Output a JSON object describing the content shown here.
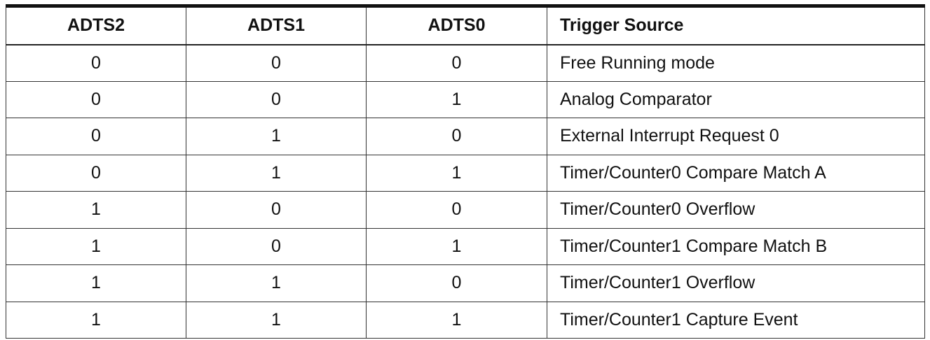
{
  "table": {
    "headers": [
      "ADTS2",
      "ADTS1",
      "ADTS0",
      "Trigger Source"
    ],
    "rows": [
      [
        "0",
        "0",
        "0",
        "Free Running mode"
      ],
      [
        "0",
        "0",
        "1",
        "Analog Comparator"
      ],
      [
        "0",
        "1",
        "0",
        "External Interrupt Request 0"
      ],
      [
        "0",
        "1",
        "1",
        "Timer/Counter0 Compare Match A"
      ],
      [
        "1",
        "0",
        "0",
        "Timer/Counter0 Overflow"
      ],
      [
        "1",
        "0",
        "1",
        "Timer/Counter1 Compare Match B"
      ],
      [
        "1",
        "1",
        "0",
        "Timer/Counter1 Overflow"
      ],
      [
        "1",
        "1",
        "1",
        "Timer/Counter1 Capture Event"
      ]
    ]
  }
}
